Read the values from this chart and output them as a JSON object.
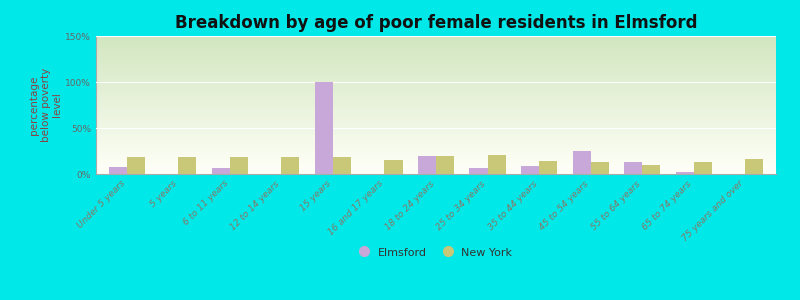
{
  "title": "Breakdown by age of poor female residents in Elmsford",
  "ylabel": "percentage\nbelow poverty\nlevel",
  "categories": [
    "Under 5 years",
    "5 years",
    "6 to 11 years",
    "12 to 14 years",
    "15 years",
    "16 and 17 years",
    "18 to 24 years",
    "25 to 34 years",
    "35 to 44 years",
    "45 to 54 years",
    "55 to 64 years",
    "65 to 74 years",
    "75 years and over"
  ],
  "elmsford_values": [
    8,
    0,
    7,
    0,
    100,
    0,
    20,
    6,
    9,
    25,
    13,
    2,
    0
  ],
  "newyork_values": [
    18,
    18,
    19,
    18,
    18,
    15,
    20,
    21,
    14,
    13,
    10,
    13,
    16
  ],
  "elmsford_color": "#c8a8d8",
  "newyork_color": "#c8c878",
  "outer_bg_color": "#00e8e8",
  "ylim": [
    0,
    150
  ],
  "yticks": [
    0,
    50,
    100,
    150
  ],
  "ytick_labels": [
    "0%",
    "50%",
    "100%",
    "150%"
  ],
  "bar_width": 0.35,
  "title_fontsize": 12,
  "axis_label_fontsize": 7.5,
  "tick_label_fontsize": 6.5,
  "legend_fontsize": 8
}
